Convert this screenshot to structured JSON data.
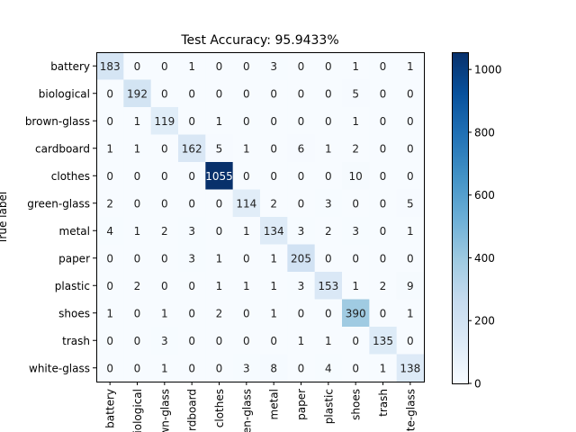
{
  "chart_data": {
    "type": "heatmap",
    "title": "Test Accuracy: 95.9433%",
    "ylabel": "True label",
    "xlabel": "",
    "row_labels": [
      "battery",
      "biological",
      "brown-glass",
      "cardboard",
      "clothes",
      "green-glass",
      "metal",
      "paper",
      "plastic",
      "shoes",
      "trash",
      "white-glass"
    ],
    "col_tick_labels": [
      "battery",
      "biological",
      "brown-glass",
      "cardboard",
      "clothes",
      "green-glass",
      "metal",
      "paper",
      "plastic",
      "shoes",
      "trash",
      "white-glass"
    ],
    "matrix": [
      [
        183,
        0,
        0,
        1,
        0,
        0,
        3,
        0,
        0,
        1,
        0,
        1
      ],
      [
        0,
        192,
        0,
        0,
        0,
        0,
        0,
        0,
        0,
        5,
        0,
        0
      ],
      [
        0,
        1,
        119,
        0,
        1,
        0,
        0,
        0,
        0,
        1,
        0,
        0
      ],
      [
        1,
        1,
        0,
        162,
        5,
        1,
        0,
        6,
        1,
        2,
        0,
        0
      ],
      [
        0,
        0,
        0,
        0,
        1055,
        0,
        0,
        0,
        0,
        10,
        0,
        0
      ],
      [
        2,
        0,
        0,
        0,
        0,
        114,
        2,
        0,
        3,
        0,
        0,
        5
      ],
      [
        4,
        1,
        2,
        3,
        0,
        1,
        134,
        3,
        2,
        3,
        0,
        1
      ],
      [
        0,
        0,
        0,
        3,
        1,
        0,
        1,
        205,
        0,
        0,
        0,
        0
      ],
      [
        0,
        2,
        0,
        0,
        1,
        1,
        1,
        3,
        153,
        1,
        2,
        9
      ],
      [
        1,
        0,
        1,
        0,
        2,
        0,
        1,
        0,
        0,
        390,
        0,
        1
      ],
      [
        0,
        0,
        3,
        0,
        0,
        0,
        0,
        1,
        1,
        0,
        135,
        0
      ],
      [
        0,
        0,
        1,
        0,
        0,
        3,
        8,
        0,
        4,
        0,
        1,
        138
      ]
    ],
    "colormap": "Blues",
    "vmin": 0,
    "vmax": 1055,
    "colorbar_ticks": [
      0,
      200,
      400,
      600,
      800,
      1000
    ],
    "grid": false
  }
}
